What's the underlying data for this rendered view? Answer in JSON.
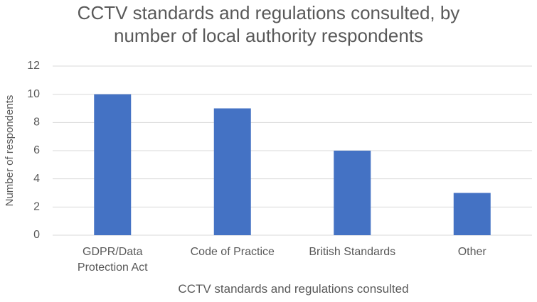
{
  "chart_data": {
    "type": "bar",
    "title": "CCTV standards and regulations consulted, by number of local authority respondents",
    "x_label": "CCTV standards and regulations consulted",
    "y_label": "Number of respondents",
    "categories": [
      "GDPR/Data Protection Act",
      "Code of Practice",
      "British Standards",
      "Other"
    ],
    "values": [
      10,
      9,
      6,
      3
    ],
    "color": "#4472c4",
    "ylim": [
      0,
      12
    ],
    "yticks": [
      0,
      2,
      4,
      6,
      8,
      10,
      12
    ],
    "grid": true
  }
}
